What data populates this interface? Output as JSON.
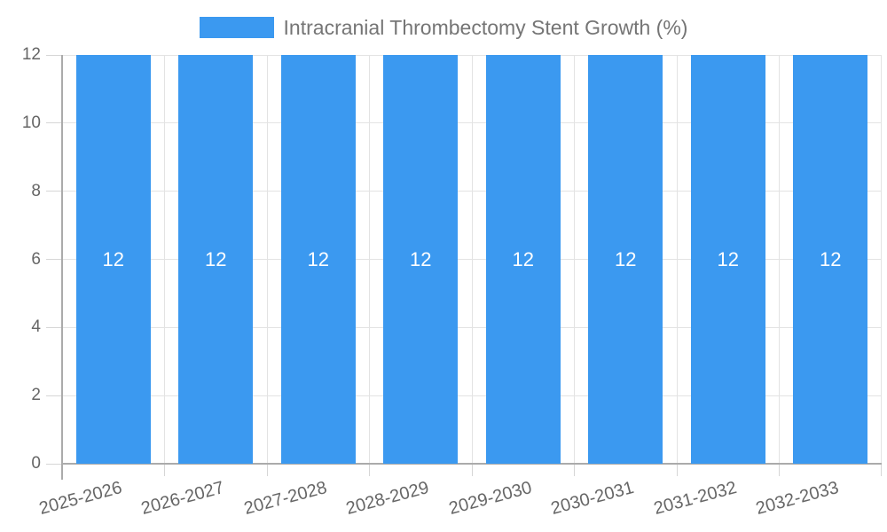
{
  "chart_data": {
    "type": "bar",
    "title": "Intracranial Thrombectomy Stent Growth (%)",
    "legend_entries": [
      "Intracranial Thrombectomy Stent Growth (%)"
    ],
    "legend_position": "top",
    "categories": [
      "2025-2026",
      "2026-2027",
      "2027-2028",
      "2028-2029",
      "2029-2030",
      "2030-2031",
      "2031-2032",
      "2032-2033"
    ],
    "values": [
      12,
      12,
      12,
      12,
      12,
      12,
      12,
      12
    ],
    "bar_value_labels": [
      "12",
      "12",
      "12",
      "12",
      "12",
      "12",
      "12",
      "12"
    ],
    "xlabel": "",
    "ylabel": "",
    "ylim": [
      0,
      12
    ],
    "yticks": [
      0,
      2,
      4,
      6,
      8,
      10,
      12
    ],
    "grid": true,
    "x_tick_rotation_deg": -15,
    "colors": {
      "bar": "#3B99F0",
      "gridline": "#e3e3e3",
      "axis_line": "#ababab",
      "tick_mark": "#d6d6d6",
      "tick_label": "#666666",
      "legend_text": "#757575",
      "bar_value_label": "#ffffff",
      "background": "#ffffff"
    }
  }
}
